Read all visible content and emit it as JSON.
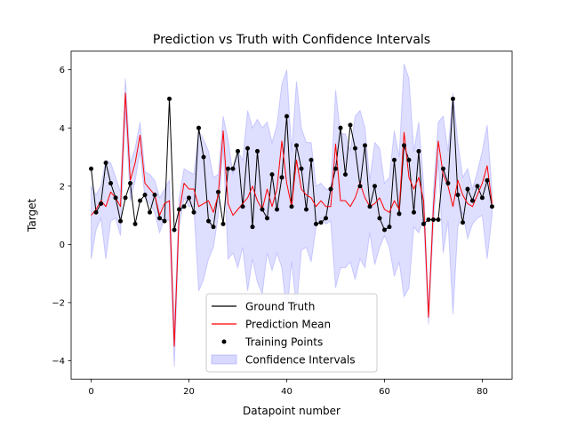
{
  "chart_data": {
    "type": "line",
    "title": "Prediction vs Truth with Confidence Intervals",
    "xlabel": "Datapoint number",
    "ylabel": "Target",
    "xlim": [
      -4.1,
      86.1
    ],
    "ylim": [
      -4.63,
      6.64
    ],
    "xticks": [
      0,
      20,
      40,
      60,
      80
    ],
    "xtick_labels": [
      "0",
      "20",
      "40",
      "60",
      "80"
    ],
    "yticks": [
      -4,
      -2,
      0,
      2,
      4,
      6
    ],
    "ytick_labels": [
      "−4",
      "−2",
      "0",
      "2",
      "4",
      "6"
    ],
    "legend_position": "lower center",
    "colors": {
      "ground_truth": "#000000",
      "prediction": "#ff0000",
      "points": "#000000",
      "ci_fill": "#0000ff",
      "ci_edge": "#8080ff"
    },
    "legend": [
      {
        "label": "Ground Truth",
        "kind": "line",
        "color": "#000000"
      },
      {
        "label": "Prediction Mean",
        "kind": "line",
        "color": "#ff0000"
      },
      {
        "label": "Training Points",
        "kind": "marker",
        "color": "#000000"
      },
      {
        "label": "Confidence Intervals",
        "kind": "patch",
        "color": "#0000ff"
      }
    ],
    "x": [
      0,
      1,
      2,
      3,
      4,
      5,
      6,
      7,
      8,
      9,
      10,
      11,
      12,
      13,
      14,
      15,
      16,
      17,
      18,
      19,
      20,
      21,
      22,
      23,
      24,
      25,
      26,
      27,
      28,
      29,
      30,
      31,
      32,
      33,
      34,
      35,
      36,
      37,
      38,
      39,
      40,
      41,
      42,
      43,
      44,
      45,
      46,
      47,
      48,
      49,
      50,
      51,
      52,
      53,
      54,
      55,
      56,
      57,
      58,
      59,
      60,
      61,
      62,
      63,
      64,
      65,
      66,
      67,
      68,
      69,
      70,
      71,
      72,
      73,
      74,
      75,
      76,
      77,
      78,
      79,
      80,
      81,
      82
    ],
    "series": [
      {
        "name": "Ground Truth",
        "values": [
          2.6,
          1.1,
          1.4,
          2.8,
          2.1,
          1.6,
          0.8,
          1.6,
          2.1,
          0.7,
          1.5,
          1.7,
          1.1,
          1.7,
          0.9,
          0.8,
          5.0,
          0.5,
          1.2,
          1.3,
          1.6,
          1.1,
          4.0,
          3.0,
          0.8,
          0.6,
          1.8,
          0.7,
          2.6,
          2.6,
          3.2,
          1.3,
          3.3,
          0.6,
          3.2,
          1.2,
          0.9,
          2.4,
          1.2,
          2.3,
          4.4,
          1.3,
          3.4,
          2.6,
          1.2,
          2.9,
          0.7,
          0.75,
          0.9,
          1.9,
          2.6,
          4.0,
          2.4,
          4.1,
          3.3,
          2.0,
          3.4,
          1.3,
          2.0,
          0.9,
          0.5,
          0.6,
          2.9,
          1.05,
          3.4,
          2.9,
          1.1,
          3.2,
          0.7,
          0.85,
          0.85,
          0.85,
          2.6,
          2.1,
          5.0,
          1.7,
          0.75,
          1.9,
          1.5,
          2.0,
          1.6,
          2.2,
          1.3
        ]
      },
      {
        "name": "Prediction Mean",
        "values": [
          1.0,
          1.2,
          1.5,
          1.3,
          1.8,
          1.6,
          1.3,
          5.2,
          2.2,
          2.8,
          3.75,
          2.1,
          1.9,
          1.7,
          1.0,
          1.4,
          1.5,
          -3.5,
          1.1,
          2.1,
          1.9,
          1.9,
          1.3,
          1.4,
          1.5,
          1.1,
          1.7,
          3.9,
          1.4,
          1.0,
          1.2,
          1.4,
          1.6,
          2.0,
          1.5,
          1.2,
          1.9,
          1.3,
          1.9,
          3.55,
          2.1,
          1.3,
          2.9,
          1.9,
          1.7,
          1.6,
          1.3,
          1.5,
          1.3,
          1.3,
          3.45,
          1.5,
          1.5,
          1.3,
          1.6,
          2.1,
          1.6,
          1.3,
          1.4,
          1.6,
          1.2,
          1.1,
          1.5,
          1.2,
          3.85,
          2.3,
          1.9,
          2.3,
          1.5,
          -2.5,
          1.25,
          3.55,
          2.4,
          2.0,
          1.3,
          2.2,
          1.7,
          1.4,
          1.3,
          1.7,
          2.1,
          2.7,
          1.4
        ]
      },
      {
        "name": "Confidence Intervals",
        "lower": [
          -0.5,
          0.5,
          0.9,
          -0.5,
          0.8,
          0.9,
          0.3,
          4.6,
          1.5,
          2.2,
          3.2,
          1.6,
          1.4,
          1.1,
          0.4,
          0.9,
          0.8,
          -4.2,
          0.6,
          1.6,
          1.3,
          1.3,
          -1.6,
          -1.2,
          -0.5,
          -0.1,
          1.0,
          3.4,
          -0.5,
          -0.3,
          -0.8,
          -0.1,
          -1.6,
          -0.5,
          -1.3,
          -1.7,
          -0.3,
          -0.9,
          -0.3,
          -0.8,
          -2.4,
          -0.6,
          -2.2,
          -0.2,
          -0.1,
          -0.6,
          0.6,
          0.9,
          0.7,
          0.8,
          -1.5,
          -0.8,
          -0.8,
          -0.6,
          -1.2,
          -0.5,
          -0.8,
          0.4,
          -0.7,
          -0.1,
          0.3,
          -0.1,
          -1.1,
          -0.6,
          -1.8,
          -1.5,
          0.6,
          0.4,
          0.9,
          -2.75,
          0.7,
          2.9,
          -0.3,
          0.8,
          -2.4,
          0.6,
          1.1,
          0.2,
          0.7,
          0.9,
          1.0,
          -0.5,
          1.0
        ],
        "upper": [
          2.0,
          1.7,
          2.0,
          2.9,
          2.8,
          2.3,
          1.8,
          5.7,
          2.8,
          3.3,
          4.2,
          2.5,
          2.4,
          2.2,
          1.6,
          1.9,
          2.2,
          -2.8,
          1.6,
          2.6,
          2.5,
          2.4,
          3.9,
          3.6,
          3.2,
          2.3,
          2.4,
          4.4,
          3.6,
          2.4,
          3.2,
          2.9,
          4.6,
          4.0,
          4.3,
          4.0,
          4.2,
          3.5,
          4.1,
          5.5,
          6.0,
          3.2,
          5.6,
          4.0,
          3.5,
          3.5,
          2.0,
          2.1,
          1.9,
          1.9,
          5.3,
          3.8,
          3.8,
          3.2,
          4.4,
          4.6,
          4.0,
          2.2,
          3.5,
          3.3,
          2.1,
          2.3,
          3.9,
          3.0,
          6.2,
          5.7,
          3.2,
          4.2,
          2.1,
          -2.2,
          1.8,
          4.2,
          4.4,
          3.2,
          5.2,
          3.5,
          2.3,
          2.6,
          1.9,
          2.5,
          3.2,
          4.1,
          1.8
        ]
      }
    ]
  }
}
